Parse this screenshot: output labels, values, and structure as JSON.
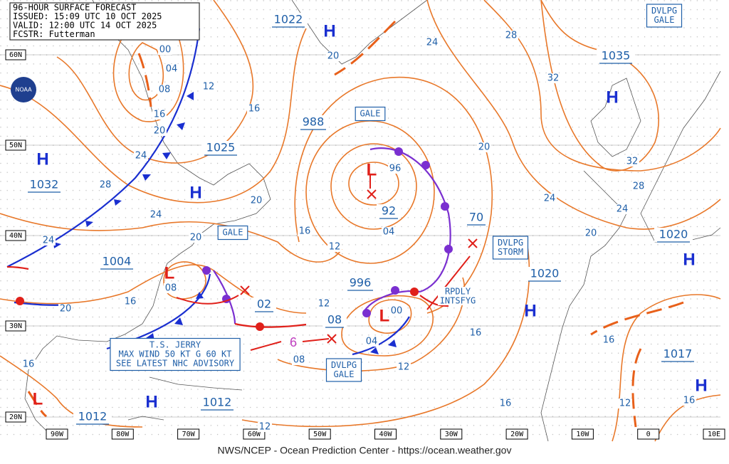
{
  "header": {
    "lines": [
      "96-HOUR SURFACE FORECAST",
      "ISSUED: 15:09 UTC 10 OCT 2025",
      "VALID: 12:00 UTC 14 OCT 2025",
      "FCSTR: Futterman"
    ]
  },
  "logo": "NOAA",
  "footer": "NWS/NCEP - Ocean Prediction Center - https://ocean.weather.gov",
  "latitude_labels": [
    "60N",
    "50N",
    "40N",
    "30N",
    "20N"
  ],
  "longitude_labels": [
    "90W",
    "80W",
    "70W",
    "60W",
    "50W",
    "40W",
    "30W",
    "20W",
    "10W",
    "0",
    "10E"
  ],
  "pressure_labels": [
    "1022",
    "988",
    "1025",
    "1032",
    "1004",
    "996",
    "1035",
    "1020",
    "1020",
    "1017",
    "1012",
    "1012",
    "92",
    "02",
    "08",
    "70"
  ],
  "highs": [
    "H",
    "H",
    "H",
    "H",
    "H",
    "H",
    "H",
    "H"
  ],
  "lows": [
    "L",
    "L",
    "L",
    "L"
  ],
  "isobar_labels": [
    "00",
    "04",
    "08",
    "12",
    "16",
    "20",
    "24",
    "28",
    "24",
    "24",
    "20",
    "20",
    "16",
    "08",
    "16",
    "20",
    "16",
    "12",
    "96",
    "04",
    "20",
    "24",
    "28",
    "32",
    "20",
    "24",
    "32",
    "28",
    "24",
    "20",
    "12",
    "00",
    "04",
    "08",
    "12",
    "16",
    "16",
    "16",
    "12",
    "16",
    "16",
    "12"
  ],
  "warning_boxes": [
    {
      "lines": [
        "GALE"
      ]
    },
    {
      "lines": [
        "GALE"
      ]
    },
    {
      "lines": [
        "DVLPG",
        "GALE"
      ]
    },
    {
      "lines": [
        "DVLPG",
        "STORM"
      ]
    },
    {
      "lines": [
        "DVLPG",
        "GALE"
      ]
    },
    {
      "lines": [
        "T.S. JERRY",
        "MAX WIND 50 KT G 60 KT",
        "SEE LATEST NHC ADVISORY"
      ]
    }
  ],
  "annotation": {
    "lines": [
      "RPDLY",
      "INTSFYG"
    ]
  }
}
